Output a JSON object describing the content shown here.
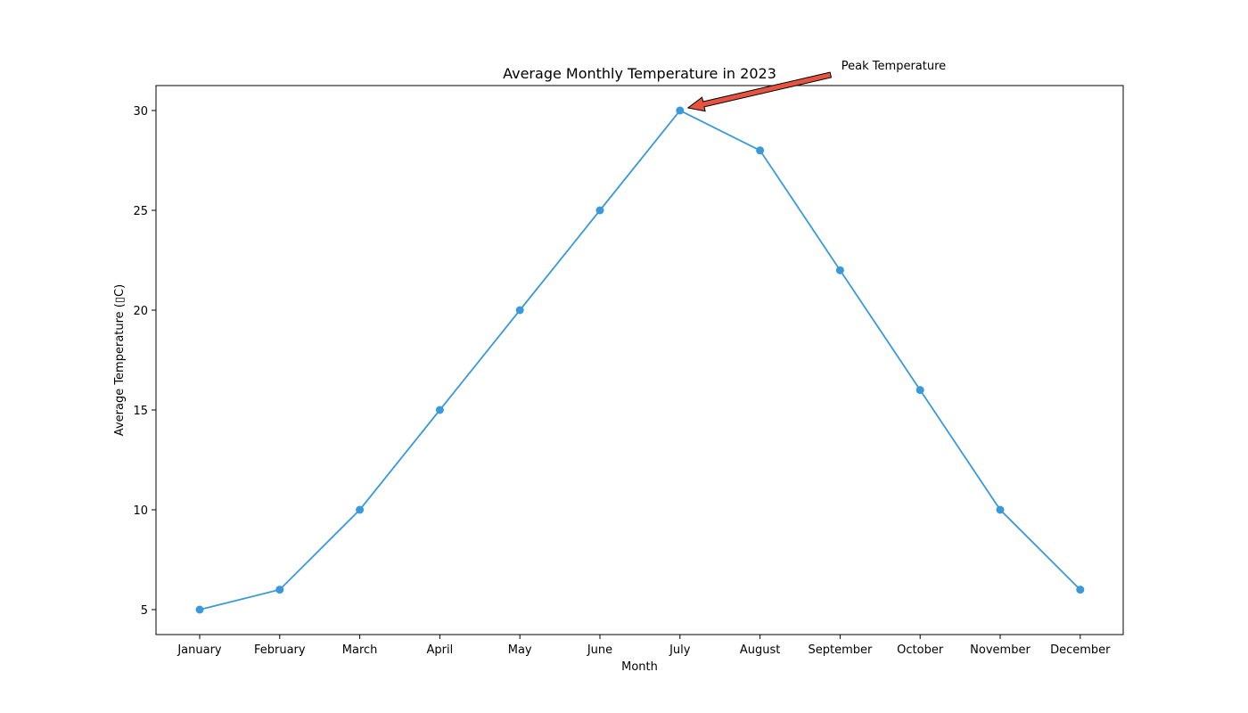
{
  "chart_data": {
    "type": "line",
    "title": "Average Monthly Temperature in 2023",
    "xlabel": "Month",
    "ylabel": "Average Temperature (▯C)",
    "categories": [
      "January",
      "February",
      "March",
      "April",
      "May",
      "June",
      "July",
      "August",
      "September",
      "October",
      "November",
      "December"
    ],
    "series": [
      {
        "values": [
          5,
          6,
          10,
          15,
          20,
          25,
          30,
          28,
          22,
          16,
          10,
          6
        ],
        "color": "#3a9ad9"
      }
    ],
    "ylim": [
      3.75,
      31.25
    ],
    "yticks": [
      5,
      10,
      15,
      20,
      25,
      30
    ],
    "grid": false,
    "annotation": {
      "text": "Peak Temperature",
      "category": "July",
      "value": 30,
      "arrow_color": "#e8533f"
    }
  }
}
